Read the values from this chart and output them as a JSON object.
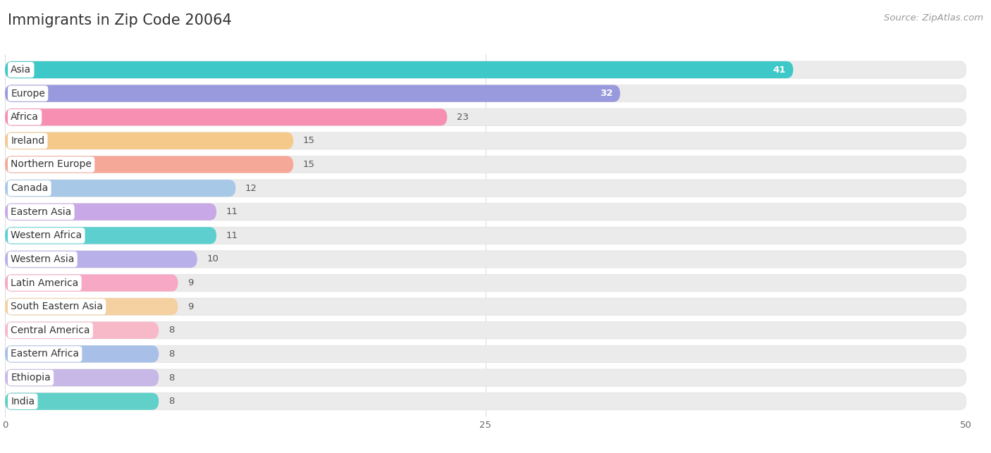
{
  "title": "Immigrants in Zip Code 20064",
  "source": "Source: ZipAtlas.com",
  "categories": [
    "Asia",
    "Europe",
    "Africa",
    "Ireland",
    "Northern Europe",
    "Canada",
    "Eastern Asia",
    "Western Africa",
    "Western Asia",
    "Latin America",
    "South Eastern Asia",
    "Central America",
    "Eastern Africa",
    "Ethiopia",
    "India"
  ],
  "values": [
    41,
    32,
    23,
    15,
    15,
    12,
    11,
    11,
    10,
    9,
    9,
    8,
    8,
    8,
    8
  ],
  "bar_colors": [
    "#3ec8c8",
    "#9999dd",
    "#f78fb3",
    "#f5c98a",
    "#f5a898",
    "#a8c8e8",
    "#c9a8e8",
    "#5dcfcf",
    "#b8b0e8",
    "#f7a8c4",
    "#f5d0a0",
    "#f7b8c8",
    "#a8c0e8",
    "#c8b8e8",
    "#60d0c8"
  ],
  "bg_color": "#ffffff",
  "bar_bg_color": "#ebebeb",
  "row_bg_even": "#f8f8f8",
  "row_bg_odd": "#ffffff",
  "xlim": [
    0,
    50
  ],
  "xticks": [
    0,
    25,
    50
  ],
  "title_fontsize": 15,
  "label_fontsize": 10,
  "value_fontsize": 9.5,
  "source_fontsize": 9.5
}
